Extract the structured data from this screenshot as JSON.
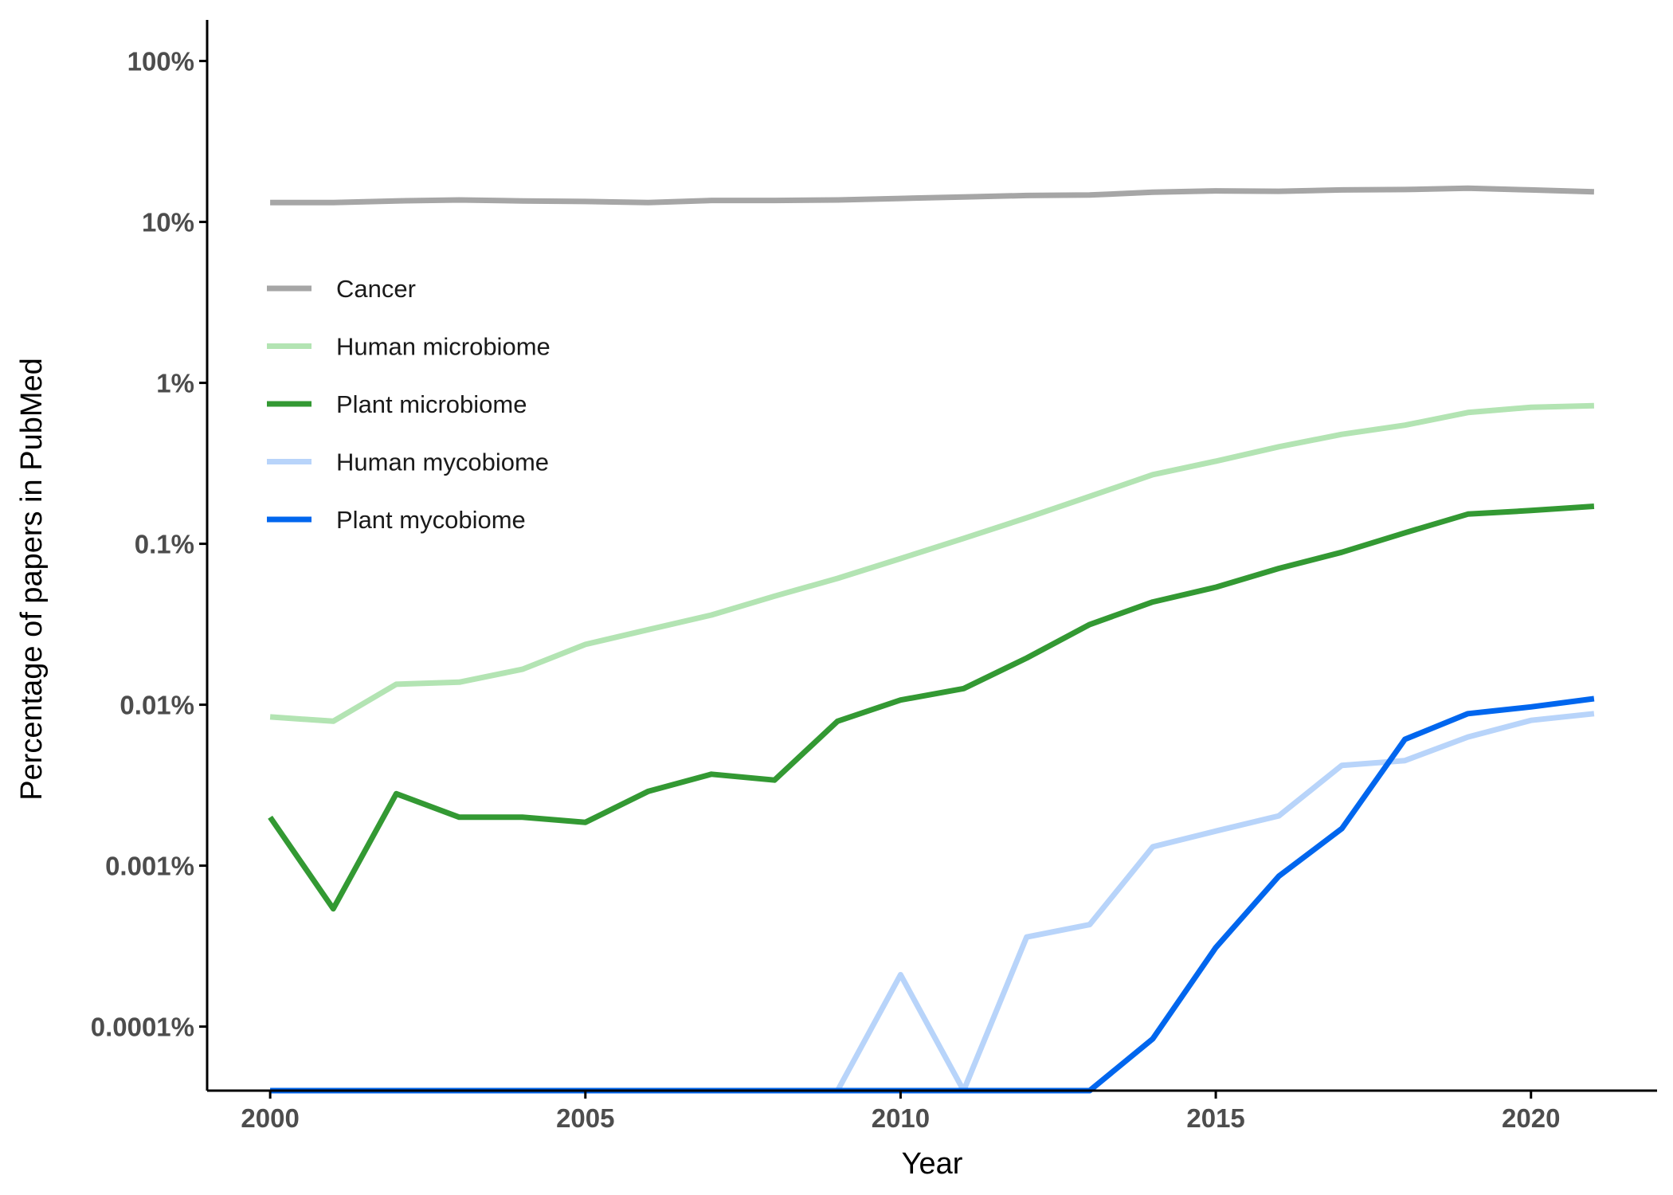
{
  "chart_data": {
    "type": "line",
    "title": "",
    "xlabel": "Year",
    "ylabel": "Percentage of papers in PubMed",
    "xlim": [
      1999,
      2022
    ],
    "ylim_percent": [
      4e-05,
      180
    ],
    "y_scale": "log10",
    "x_ticks": [
      2000,
      2005,
      2010,
      2015,
      2020
    ],
    "x_tick_labels": [
      "2000",
      "2005",
      "2010",
      "2015",
      "2020"
    ],
    "y_ticks_percent": [
      0.0001,
      0.001,
      0.01,
      0.1,
      1,
      10,
      100
    ],
    "y_tick_labels": [
      "0.0001%",
      "0.001%",
      "0.01%",
      "0.1%",
      "1%",
      "10%",
      "100%"
    ],
    "grid": false,
    "legend_position": "top-left",
    "x": [
      2000,
      2001,
      2002,
      2003,
      2004,
      2005,
      2006,
      2007,
      2008,
      2009,
      2010,
      2011,
      2012,
      2013,
      2014,
      2015,
      2016,
      2017,
      2018,
      2019,
      2020,
      2021
    ],
    "series": [
      {
        "name": "Cancer",
        "color": "#a6a6a6",
        "values": [
          13.2,
          13.2,
          13.5,
          13.7,
          13.5,
          13.4,
          13.2,
          13.6,
          13.6,
          13.7,
          14.0,
          14.3,
          14.6,
          14.7,
          15.3,
          15.6,
          15.5,
          15.8,
          15.9,
          16.2,
          15.8,
          15.4
        ]
      },
      {
        "name": "Human microbiome",
        "color": "#b3e4b3",
        "values": [
          0.0084,
          0.0079,
          0.0134,
          0.0138,
          0.0166,
          0.0237,
          0.0293,
          0.0361,
          0.0473,
          0.061,
          0.081,
          0.108,
          0.145,
          0.197,
          0.269,
          0.326,
          0.401,
          0.479,
          0.546,
          0.654,
          0.705,
          0.722
        ]
      },
      {
        "name": "Plant microbiome",
        "color": "#339933",
        "values": [
          0.002,
          0.00054,
          0.0028,
          0.002,
          0.002,
          0.00186,
          0.0029,
          0.0037,
          0.0034,
          0.0079,
          0.0107,
          0.0126,
          0.0195,
          0.0315,
          0.0435,
          0.0537,
          0.0703,
          0.0886,
          0.117,
          0.153,
          0.161,
          0.171
        ]
      },
      {
        "name": "Human mycobiome",
        "color": "#b8d4fa",
        "values": [
          null,
          null,
          null,
          null,
          null,
          null,
          null,
          null,
          null,
          null,
          0.00021,
          null,
          0.00036,
          0.00043,
          0.00131,
          0.00164,
          0.00204,
          0.0042,
          0.0045,
          0.0063,
          0.008,
          0.0088
        ]
      },
      {
        "name": "Plant mycobiome",
        "color": "#0066ee",
        "values": [
          null,
          null,
          null,
          null,
          null,
          null,
          null,
          null,
          null,
          null,
          null,
          null,
          null,
          null,
          8.4e-05,
          0.00031,
          0.00086,
          0.0017,
          0.0061,
          0.0088,
          0.0097,
          0.0109
        ]
      }
    ]
  }
}
